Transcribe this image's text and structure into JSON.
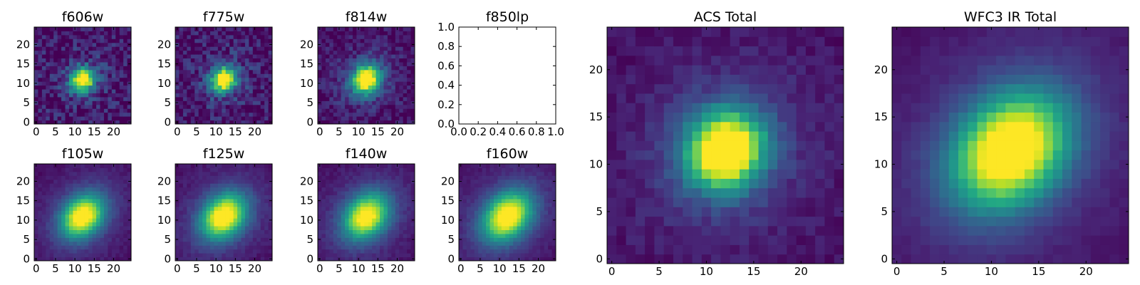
{
  "chart_data": [
    {
      "type": "heatmap",
      "title": "f606w",
      "size": 25,
      "sigma": 1.9,
      "noise": 0.3,
      "peak": 1.0,
      "floor": 0.05,
      "center": [
        12,
        11
      ],
      "elong": 1.1,
      "xticks": [
        0,
        5,
        10,
        15,
        20
      ],
      "yticks": [
        0,
        5,
        10,
        15,
        20
      ],
      "xlim": [
        -0.5,
        24.5
      ],
      "ylim": [
        -0.5,
        24.5
      ]
    },
    {
      "type": "heatmap",
      "title": "f775w",
      "size": 25,
      "sigma": 2.0,
      "noise": 0.28,
      "peak": 1.0,
      "floor": 0.05,
      "center": [
        12,
        11
      ],
      "elong": 1.1,
      "xticks": [
        0,
        5,
        10,
        15,
        20
      ],
      "yticks": [
        0,
        5,
        10,
        15,
        20
      ],
      "xlim": [
        -0.5,
        24.5
      ],
      "ylim": [
        -0.5,
        24.5
      ]
    },
    {
      "type": "heatmap",
      "title": "f814w",
      "size": 25,
      "sigma": 2.3,
      "noise": 0.2,
      "peak": 1.0,
      "floor": 0.04,
      "center": [
        12,
        11
      ],
      "elong": 1.15,
      "xticks": [
        0,
        5,
        10,
        15,
        20
      ],
      "yticks": [
        0,
        5,
        10,
        15,
        20
      ],
      "xlim": [
        -0.5,
        24.5
      ],
      "ylim": [
        -0.5,
        24.5
      ]
    },
    {
      "type": "empty",
      "title": "f850lp",
      "xticks": [
        "0.0",
        "0.2",
        "0.4",
        "0.6",
        "0.8",
        "1.0"
      ],
      "yticks": [
        "0.0",
        "0.2",
        "0.4",
        "0.6",
        "0.8",
        "1.0"
      ],
      "xlim": [
        0,
        1
      ],
      "ylim": [
        0,
        1
      ]
    },
    {
      "type": "heatmap",
      "title": "f105w",
      "size": 25,
      "sigma": 3.2,
      "noise": 0.06,
      "peak": 0.95,
      "floor": 0.02,
      "center": [
        12,
        11
      ],
      "elong": 1.3,
      "xticks": [
        0,
        5,
        10,
        15,
        20
      ],
      "yticks": [
        0,
        5,
        10,
        15,
        20
      ],
      "xlim": [
        -0.5,
        24.5
      ],
      "ylim": [
        -0.5,
        24.5
      ]
    },
    {
      "type": "heatmap",
      "title": "f125w",
      "size": 25,
      "sigma": 3.4,
      "noise": 0.07,
      "peak": 0.95,
      "floor": 0.02,
      "center": [
        12,
        11
      ],
      "elong": 1.3,
      "xticks": [
        0,
        5,
        10,
        15,
        20
      ],
      "yticks": [
        0,
        5,
        10,
        15,
        20
      ],
      "xlim": [
        -0.5,
        24.5
      ],
      "ylim": [
        -0.5,
        24.5
      ]
    },
    {
      "type": "heatmap",
      "title": "f140w",
      "size": 25,
      "sigma": 3.4,
      "noise": 0.07,
      "peak": 0.9,
      "floor": 0.02,
      "center": [
        12,
        11
      ],
      "elong": 1.3,
      "xticks": [
        0,
        5,
        10,
        15,
        20
      ],
      "yticks": [
        0,
        5,
        10,
        15,
        20
      ],
      "xlim": [
        -0.5,
        24.5
      ],
      "ylim": [
        -0.5,
        24.5
      ]
    },
    {
      "type": "heatmap",
      "title": "f160w",
      "size": 25,
      "sigma": 3.6,
      "noise": 0.06,
      "peak": 0.95,
      "floor": 0.02,
      "center": [
        12,
        11
      ],
      "elong": 1.35,
      "xticks": [
        0,
        5,
        10,
        15,
        20
      ],
      "yticks": [
        0,
        5,
        10,
        15,
        20
      ],
      "xlim": [
        -0.5,
        24.5
      ],
      "ylim": [
        -0.5,
        24.5
      ]
    },
    {
      "type": "heatmap",
      "title": "ACS Total",
      "size": 25,
      "sigma": 2.6,
      "noise": 0.1,
      "peak": 1.15,
      "floor": 0.04,
      "center": [
        12,
        11.5
      ],
      "elong": 1.1,
      "xticks": [
        0,
        5,
        10,
        15,
        20
      ],
      "yticks": [
        0,
        5,
        10,
        15,
        20
      ],
      "xlim": [
        -0.5,
        24.5
      ],
      "ylim": [
        -0.5,
        24.5
      ]
    },
    {
      "type": "heatmap",
      "title": "WFC3 IR Total",
      "size": 25,
      "sigma": 3.5,
      "noise": 0.04,
      "peak": 1.05,
      "floor": 0.02,
      "center": [
        12,
        11.5
      ],
      "elong": 1.3,
      "xticks": [
        0,
        5,
        10,
        15,
        20
      ],
      "yticks": [
        0,
        5,
        10,
        15,
        20
      ],
      "xlim": [
        -0.5,
        24.5
      ],
      "ylim": [
        -0.5,
        24.5
      ]
    }
  ]
}
